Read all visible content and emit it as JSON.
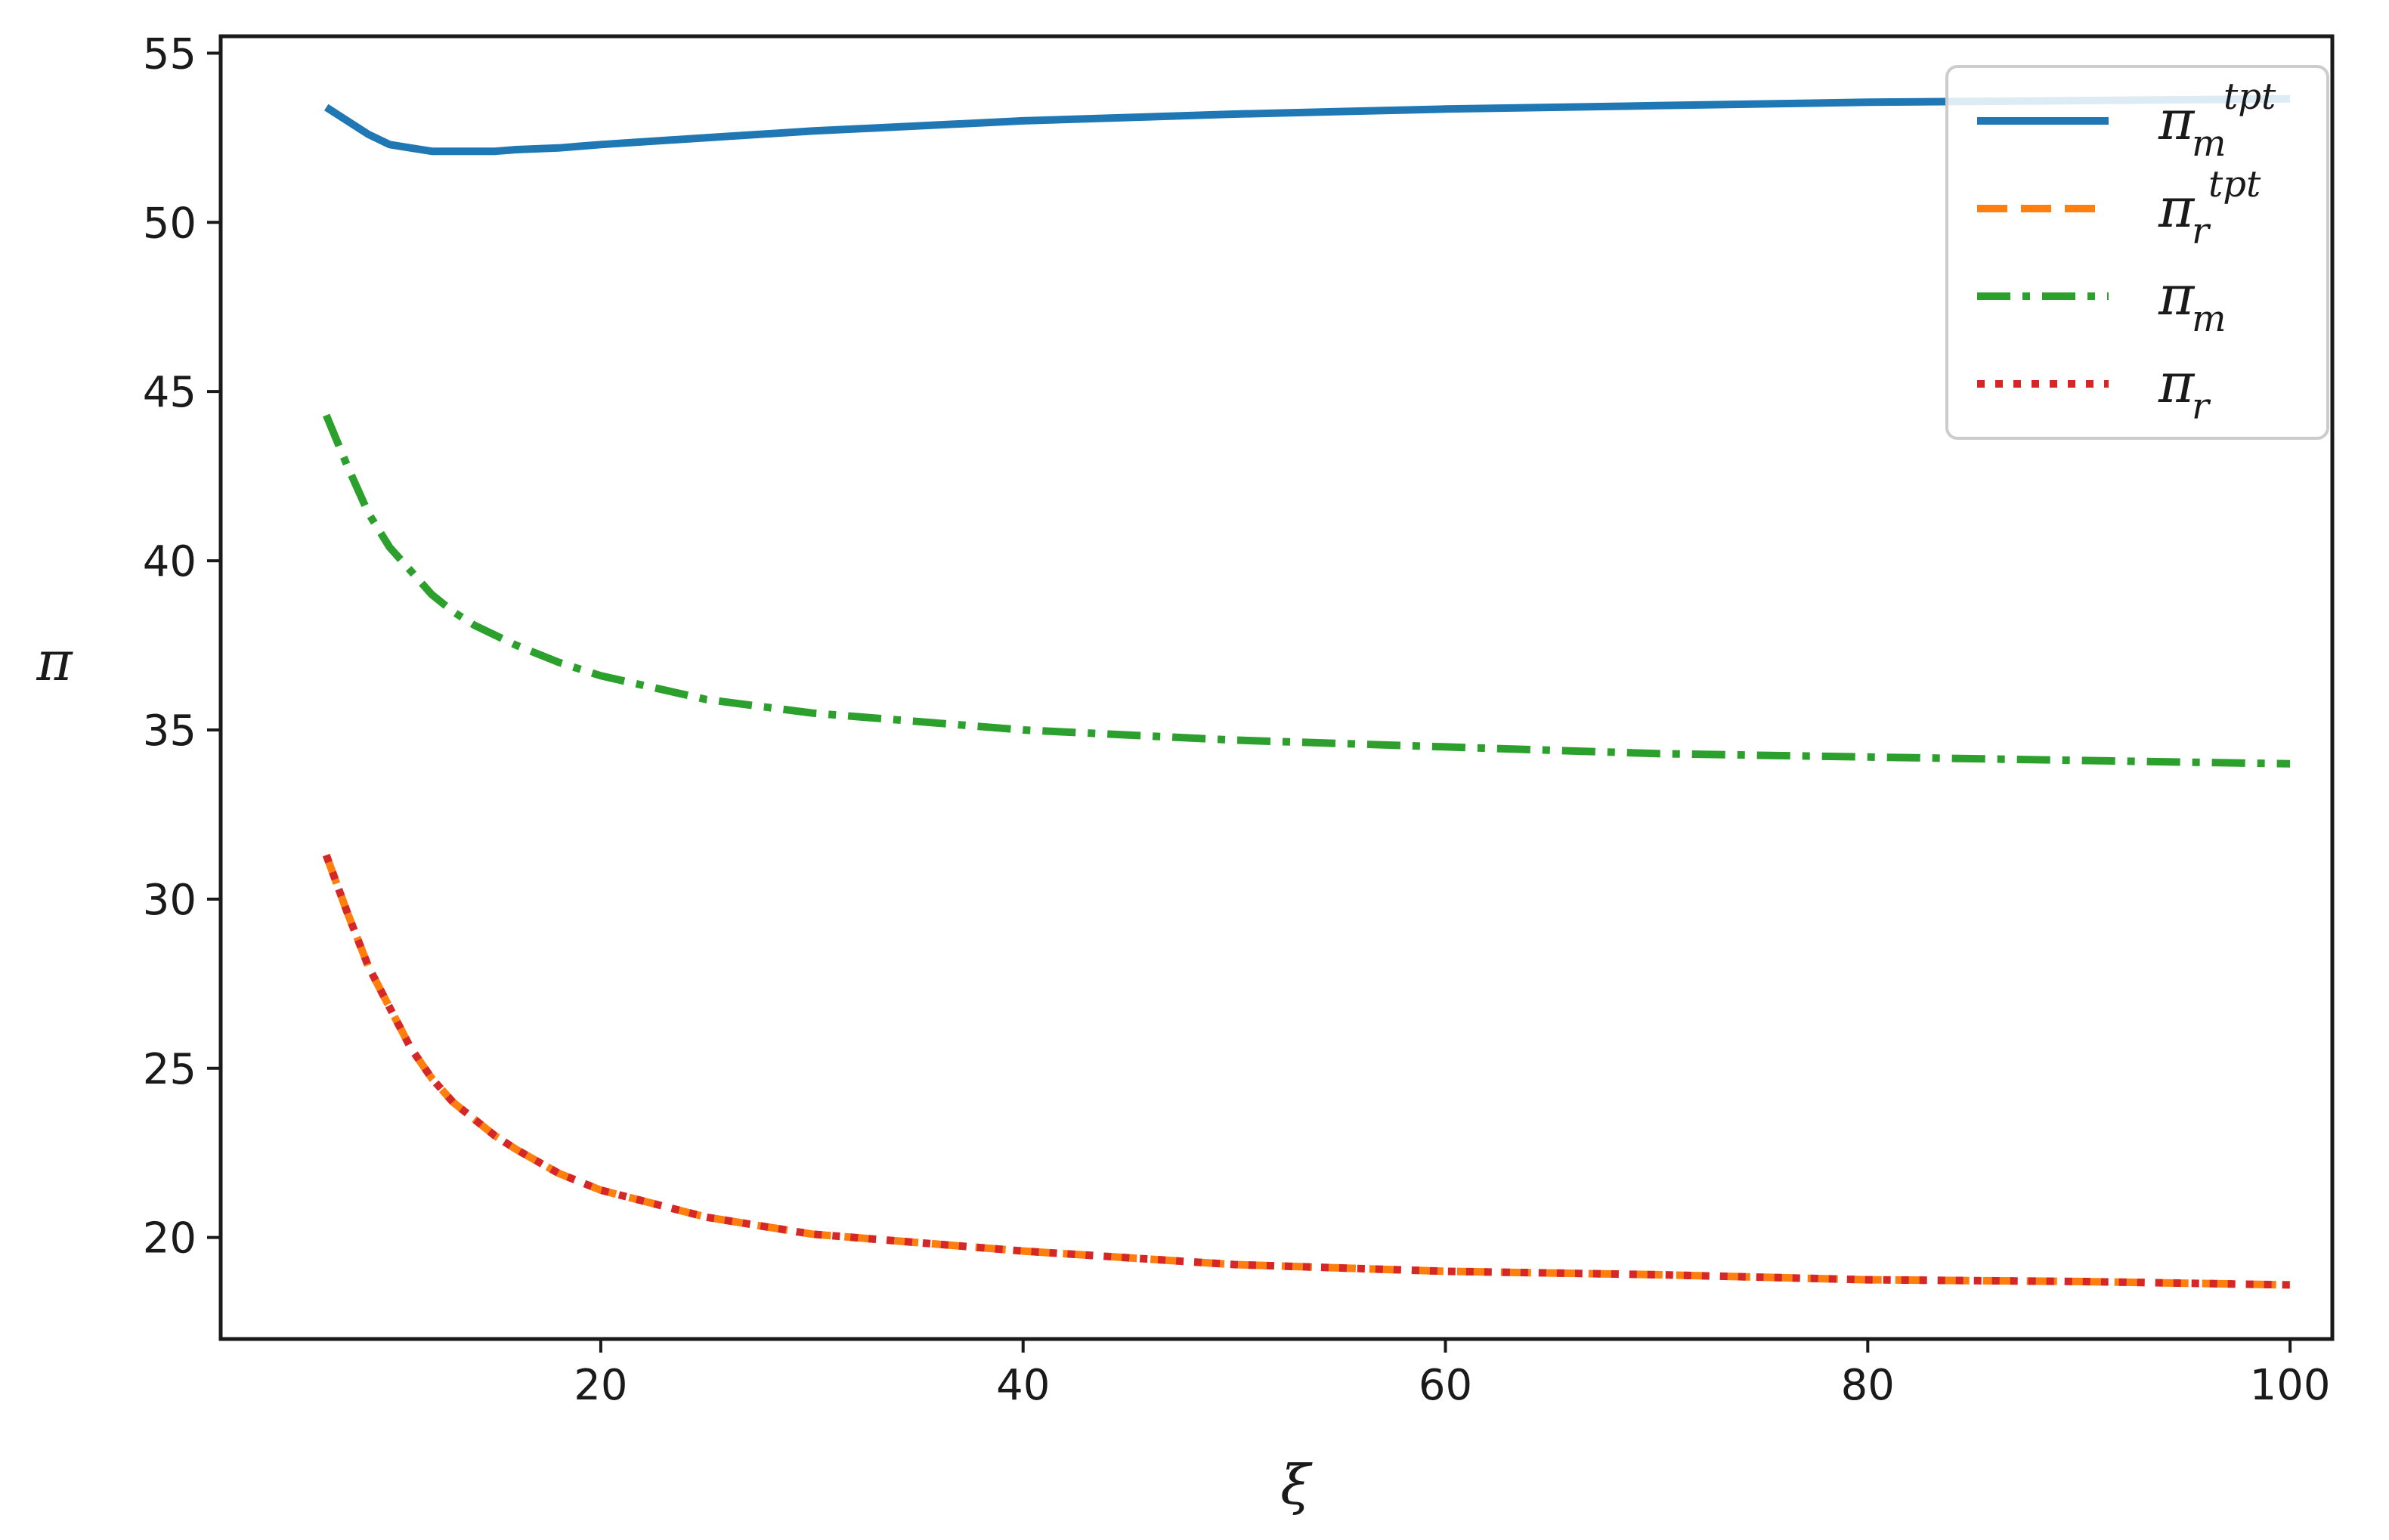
{
  "chart_data": {
    "type": "line",
    "xlabel": "ξ",
    "ylabel": "π",
    "xlim": [
      2,
      102
    ],
    "ylim": [
      17,
      55.5
    ],
    "xticks": [
      20,
      40,
      60,
      80,
      100
    ],
    "yticks": [
      20,
      25,
      30,
      35,
      40,
      45,
      50,
      55
    ],
    "grid": false,
    "legend_position": "top-right",
    "series": [
      {
        "name": "πm^tpt",
        "symbol": "π",
        "sub": "m",
        "sup": "tpt",
        "color": "#1f77b4",
        "style": "solid",
        "x": [
          7,
          8,
          9,
          10,
          11,
          12,
          13,
          14,
          15,
          16,
          18,
          20,
          25,
          30,
          40,
          50,
          60,
          70,
          80,
          90,
          100
        ],
        "y": [
          53.4,
          53.0,
          52.6,
          52.3,
          52.2,
          52.1,
          52.1,
          52.1,
          52.1,
          52.15,
          52.2,
          52.3,
          52.5,
          52.7,
          53.0,
          53.2,
          53.35,
          53.45,
          53.55,
          53.6,
          53.65
        ]
      },
      {
        "name": "πr^tpt",
        "symbol": "π",
        "sub": "r",
        "sup": "tpt",
        "color": "#ff7f0e",
        "style": "dashed",
        "x": [
          7,
          8,
          9,
          10,
          11,
          12,
          13,
          14,
          15,
          16,
          18,
          20,
          25,
          30,
          40,
          50,
          60,
          70,
          80,
          90,
          100
        ],
        "y": [
          31.3,
          29.6,
          28.0,
          26.8,
          25.6,
          24.7,
          24.0,
          23.5,
          23.0,
          22.6,
          21.9,
          21.4,
          20.6,
          20.1,
          19.6,
          19.2,
          19.0,
          18.9,
          18.75,
          18.7,
          18.6
        ]
      },
      {
        "name": "πm",
        "symbol": "π",
        "sub": "m",
        "sup": "",
        "color": "#2ca02c",
        "style": "dashdot",
        "x": [
          7,
          8,
          9,
          10,
          11,
          12,
          13,
          14,
          15,
          16,
          18,
          20,
          25,
          30,
          40,
          50,
          60,
          70,
          80,
          90,
          100
        ],
        "y": [
          44.3,
          42.8,
          41.4,
          40.4,
          39.7,
          39.0,
          38.5,
          38.1,
          37.8,
          37.5,
          37.0,
          36.6,
          35.9,
          35.5,
          35.0,
          34.7,
          34.5,
          34.3,
          34.2,
          34.1,
          34.0
        ]
      },
      {
        "name": "πr",
        "symbol": "π",
        "sub": "r",
        "sup": "",
        "color": "#d62728",
        "style": "dotted",
        "x": [
          7,
          8,
          9,
          10,
          11,
          12,
          13,
          14,
          15,
          16,
          18,
          20,
          25,
          30,
          40,
          50,
          60,
          70,
          80,
          90,
          100
        ],
        "y": [
          31.3,
          29.6,
          28.0,
          26.8,
          25.6,
          24.7,
          24.0,
          23.5,
          23.0,
          22.6,
          21.9,
          21.4,
          20.6,
          20.1,
          19.6,
          19.2,
          19.0,
          18.9,
          18.75,
          18.7,
          18.6
        ]
      }
    ]
  }
}
